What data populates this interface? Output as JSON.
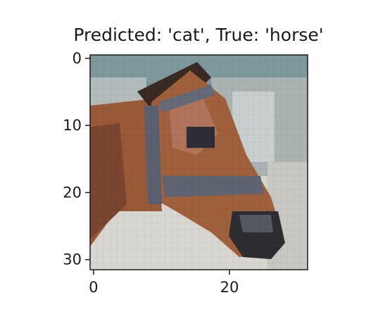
{
  "title": "Predicted: 'cat', True: 'horse'",
  "image": {
    "subject": "horse head",
    "grid": [
      32,
      32
    ],
    "colors": {
      "sky": "#6f8f96",
      "trees": "#8a9a98",
      "ground": "#d8d6d0",
      "coat": "#9a5a38",
      "coat_dark": "#6a3a26",
      "halter": "#5a6070",
      "muzzle": "#2e2e32",
      "mane": "#3a2a24"
    }
  },
  "axes": {
    "x_ticks": [
      {
        "value": 0,
        "label": "0"
      },
      {
        "value": 20,
        "label": "20"
      }
    ],
    "y_ticks": [
      {
        "value": 0,
        "label": "0"
      },
      {
        "value": 10,
        "label": "10"
      },
      {
        "value": 20,
        "label": "20"
      },
      {
        "value": 30,
        "label": "30"
      }
    ],
    "xlim": [
      -0.5,
      31.5
    ],
    "ylim": [
      31.5,
      -0.5
    ]
  }
}
